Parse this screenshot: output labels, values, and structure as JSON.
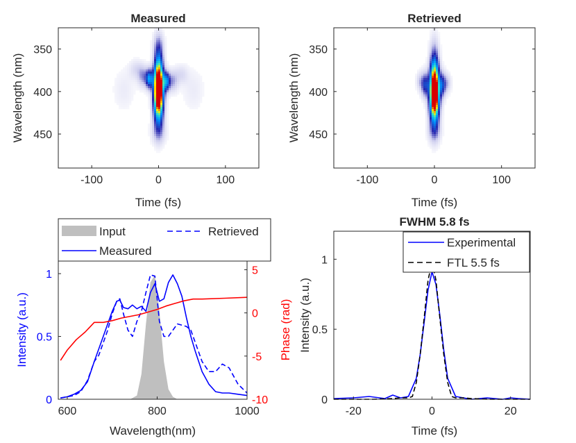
{
  "chart_data": [
    {
      "type": "heatmap",
      "title": "Measured",
      "xlabel": "Time (fs)",
      "ylabel": "Wavelength (nm)",
      "xlim": [
        -150,
        150
      ],
      "ylim": [
        490,
        325
      ],
      "xticks": [
        -100,
        0,
        100
      ],
      "yticks": [
        350,
        400,
        450
      ],
      "colormap": "white-blue-cyan-yellow-red",
      "blobs": [
        {
          "t": 0,
          "wl": 392,
          "st": 5,
          "sw": 27,
          "a": 1.0
        },
        {
          "t": 0,
          "wl": 408,
          "st": 6,
          "sw": 22,
          "a": 0.45
        },
        {
          "t": -14,
          "wl": 385,
          "st": 4,
          "sw": 8,
          "a": 0.55
        },
        {
          "t": 12,
          "wl": 388,
          "st": 4,
          "sw": 8,
          "a": 0.5
        },
        {
          "t": -24,
          "wl": 382,
          "st": 5,
          "sw": 9,
          "a": 0.22
        },
        {
          "t": 22,
          "wl": 388,
          "st": 5,
          "sw": 9,
          "a": 0.2
        },
        {
          "t": -34,
          "wl": 374,
          "st": 7,
          "sw": 8,
          "a": 0.12
        },
        {
          "t": 34,
          "wl": 380,
          "st": 7,
          "sw": 8,
          "a": 0.12
        },
        {
          "t": -52,
          "wl": 398,
          "st": 12,
          "sw": 18,
          "a": 0.07
        },
        {
          "t": 52,
          "wl": 398,
          "st": 12,
          "sw": 18,
          "a": 0.07
        },
        {
          "t": 0,
          "wl": 448,
          "st": 8,
          "sw": 10,
          "a": 0.15
        },
        {
          "t": 0,
          "wl": 345,
          "st": 6,
          "sw": 10,
          "a": 0.12
        }
      ]
    },
    {
      "type": "heatmap",
      "title": "Retrieved",
      "xlabel": "Time (fs)",
      "ylabel": "Wavelength (nm)",
      "xlim": [
        -150,
        150
      ],
      "ylim": [
        490,
        325
      ],
      "xticks": [
        -100,
        0,
        100
      ],
      "yticks": [
        350,
        400,
        450
      ],
      "colormap": "white-blue-cyan-yellow-red",
      "blobs": [
        {
          "t": 0,
          "wl": 395,
          "st": 5,
          "sw": 28,
          "a": 1.0
        },
        {
          "t": 0,
          "wl": 410,
          "st": 6,
          "sw": 20,
          "a": 0.4
        },
        {
          "t": -14,
          "wl": 392,
          "st": 4,
          "sw": 10,
          "a": 0.4
        },
        {
          "t": 12,
          "wl": 392,
          "st": 4,
          "sw": 10,
          "a": 0.38
        },
        {
          "t": -22,
          "wl": 388,
          "st": 4,
          "sw": 8,
          "a": 0.15
        },
        {
          "t": 20,
          "wl": 390,
          "st": 4,
          "sw": 8,
          "a": 0.15
        },
        {
          "t": 0,
          "wl": 448,
          "st": 7,
          "sw": 9,
          "a": 0.15
        }
      ]
    },
    {
      "type": "line",
      "xlabel": "Wavelength(nm)",
      "ylabel": "Intensity (a.u.)",
      "ylabel_right": "Phase (rad)",
      "xlim": [
        580,
        1000
      ],
      "ylim": [
        0,
        1.1
      ],
      "ylim_right": [
        -10,
        6
      ],
      "xticks": [
        600,
        800,
        1000
      ],
      "yticks": [
        0,
        0.5,
        1
      ],
      "yticks_right": [
        -10,
        -5,
        0,
        5
      ],
      "legend": {
        "entries": [
          "Input",
          "Retrieved",
          "Measured"
        ],
        "placement": "outside-top"
      },
      "series": [
        {
          "name": "Input",
          "style": "filled-gray",
          "x": [
            740,
            755,
            765,
            775,
            785,
            795,
            805,
            815,
            825,
            835,
            845
          ],
          "y": [
            0,
            0.03,
            0.2,
            0.6,
            0.93,
            0.99,
            0.7,
            0.3,
            0.08,
            0.02,
            0
          ]
        },
        {
          "name": "Measured",
          "style": "solid-blue",
          "x": [
            585,
            600,
            615,
            630,
            645,
            660,
            670,
            680,
            690,
            700,
            710,
            717,
            725,
            735,
            745,
            755,
            765,
            775,
            785,
            795,
            805,
            815,
            825,
            835,
            845,
            855,
            865,
            875,
            885,
            900,
            915,
            930,
            945,
            960,
            980,
            1000
          ],
          "y": [
            0.01,
            0.02,
            0.04,
            0.07,
            0.14,
            0.3,
            0.4,
            0.5,
            0.6,
            0.7,
            0.78,
            0.79,
            0.73,
            0.72,
            0.75,
            0.72,
            0.74,
            0.7,
            0.85,
            0.92,
            0.78,
            0.8,
            0.93,
            0.99,
            0.92,
            0.82,
            0.65,
            0.5,
            0.38,
            0.22,
            0.12,
            0.06,
            0.05,
            0.05,
            0.04,
            0.03
          ]
        },
        {
          "name": "Retrieved",
          "style": "dashed-blue",
          "x": [
            585,
            600,
            615,
            630,
            645,
            660,
            670,
            680,
            690,
            700,
            710,
            717,
            725,
            735,
            745,
            755,
            765,
            775,
            785,
            795,
            805,
            815,
            825,
            835,
            845,
            855,
            865,
            875,
            885,
            900,
            915,
            930,
            945,
            960,
            980,
            1000
          ],
          "y": [
            0.01,
            0.02,
            0.03,
            0.06,
            0.15,
            0.3,
            0.35,
            0.45,
            0.55,
            0.68,
            0.78,
            0.8,
            0.68,
            0.55,
            0.5,
            0.62,
            0.7,
            0.85,
            0.99,
            0.98,
            0.62,
            0.5,
            0.5,
            0.55,
            0.6,
            0.59,
            0.58,
            0.55,
            0.45,
            0.3,
            0.22,
            0.22,
            0.28,
            0.25,
            0.12,
            0.05
          ]
        },
        {
          "name": "Phase",
          "style": "solid-red",
          "axis": "right",
          "x": [
            585,
            600,
            620,
            640,
            660,
            680,
            700,
            720,
            740,
            760,
            780,
            800,
            820,
            840,
            860,
            880,
            900,
            950,
            1000
          ],
          "y": [
            -5.5,
            -4.3,
            -3.1,
            -2.2,
            -1.1,
            -1.1,
            -0.9,
            -0.6,
            -0.4,
            -0.2,
            0.1,
            0.4,
            0.8,
            1.1,
            1.4,
            1.6,
            1.6,
            1.7,
            1.8
          ]
        }
      ]
    },
    {
      "type": "line",
      "title": "FWHM 5.8 fs",
      "xlabel": "Time (fs)",
      "ylabel": "Intensity (a.u.)",
      "xlim": [
        -25,
        25
      ],
      "ylim": [
        0,
        1.2
      ],
      "xticks": [
        -20,
        0,
        20
      ],
      "yticks": [
        0,
        0.5,
        1
      ],
      "legend": {
        "entries": [
          "Experimental",
          "FTL 5.5 fs"
        ],
        "placement": "top-right"
      },
      "series": [
        {
          "name": "Experimental",
          "style": "solid-blue",
          "x": [
            -25,
            -20,
            -16,
            -12,
            -10,
            -8,
            -6,
            -4,
            -3,
            -2,
            -1,
            0,
            1,
            2,
            3,
            4,
            6,
            8,
            10,
            14,
            18,
            20,
            22,
            25
          ],
          "y": [
            0.005,
            0.01,
            0.02,
            0.005,
            0.03,
            0.01,
            0.02,
            0.15,
            0.32,
            0.55,
            0.78,
            0.91,
            0.82,
            0.6,
            0.35,
            0.15,
            0.02,
            0.01,
            0.0,
            0.01,
            0.0,
            0.01,
            0.005,
            0.0
          ]
        },
        {
          "name": "FTL 5.5 fs",
          "style": "dashed-black",
          "x": [
            -25,
            -20,
            -15,
            -10,
            -8,
            -6,
            -5,
            -4,
            -3,
            -2,
            -1,
            0,
            1,
            2,
            3,
            4,
            5,
            6,
            8,
            10,
            15,
            20,
            25
          ],
          "y": [
            0,
            0,
            0,
            0.005,
            0.01,
            0.01,
            0.02,
            0.12,
            0.32,
            0.58,
            0.85,
            0.98,
            0.85,
            0.58,
            0.32,
            0.12,
            0.02,
            0.01,
            0.01,
            0.005,
            0,
            0,
            0
          ]
        }
      ]
    }
  ]
}
